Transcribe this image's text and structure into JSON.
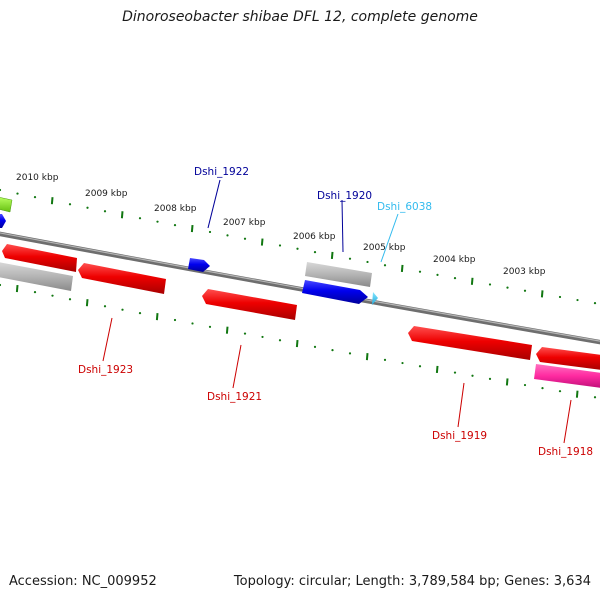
{
  "title": "Dinoroseobacter shibae DFL 12, complete genome",
  "footer": {
    "accession": "Accession: NC_009952",
    "summary": "Topology: circular; Length: 3,789,584 bp; Genes: 3,634"
  },
  "colors": {
    "forward_gene": "#0000ee",
    "reverse_gene": "#ee0000",
    "pseudo_gene": "#b0b0b0",
    "misc_feature": "#ff2aa0",
    "rna_feature": "#7fe020",
    "backbone": "#8a8a8a",
    "tick": "#117711",
    "label_forward": "#000099",
    "label_reverse": "#cc0000",
    "label_highlight": "#33bbee"
  },
  "scale_labels": [
    "2010 kbp",
    "2009 kbp",
    "2008 kbp",
    "2007 kbp",
    "2006 kbp",
    "2005 kbp",
    "2004 kbp",
    "2003 kbp"
  ],
  "gene_labels": [
    {
      "text": "Dshi_1922",
      "color": "label_forward"
    },
    {
      "text": "Dshi_1920",
      "color": "label_forward"
    },
    {
      "text": "Dshi_6038",
      "color": "label_highlight"
    },
    {
      "text": "Dshi_1923",
      "color": "label_reverse"
    },
    {
      "text": "Dshi_1921",
      "color": "label_reverse"
    },
    {
      "text": "Dshi_1919",
      "color": "label_reverse"
    },
    {
      "text": "Dshi_1918",
      "color": "label_reverse"
    }
  ]
}
